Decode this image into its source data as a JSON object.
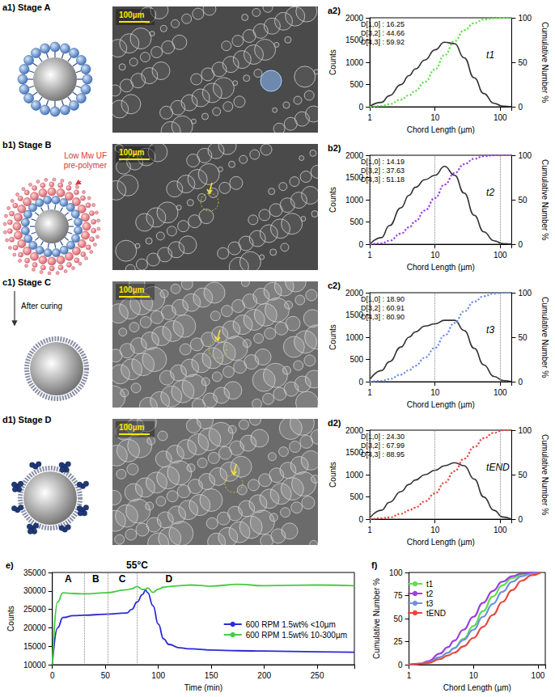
{
  "schematics": [
    {
      "label": "a1) Stage A"
    },
    {
      "label": "b1) Stage B",
      "annotation": "Low Mw UF pre-polymer"
    },
    {
      "label": "c1) Stage C",
      "annotation": "After curing"
    },
    {
      "label": "d1) Stage D"
    }
  ],
  "micrographs": [
    {
      "scale_bar": "100µm"
    },
    {
      "scale_bar": "100µm"
    },
    {
      "scale_bar": "100µm"
    },
    {
      "scale_bar": "100µm"
    }
  ],
  "chart_data": [
    {
      "type": "line",
      "title": "a2)",
      "log": "x",
      "grid": false,
      "xlabel": "Chord Length (µm)",
      "ylabel": "Counts",
      "y2label": "Cumulative Number %",
      "stats": [
        "D[1,0] : 16.25",
        "D[3,2] : 44.66",
        "D[4,3] : 59.92"
      ],
      "time_label": "t1",
      "x": [
        1,
        1.5,
        2,
        3,
        4,
        5,
        7,
        10,
        14,
        20,
        28,
        40,
        56,
        80,
        110,
        150
      ],
      "xlim": [
        1,
        150
      ],
      "xticks": [
        1,
        10,
        100
      ],
      "ylim": [
        0,
        2000
      ],
      "yticks": [
        0,
        500,
        1000,
        1500,
        2000
      ],
      "y2lim": [
        0,
        100
      ],
      "y2ticks": [
        0,
        50,
        100
      ],
      "series": [
        {
          "color": "#333333",
          "line_style": "solid",
          "values": [
            10,
            100,
            250,
            500,
            700,
            850,
            1050,
            1280,
            1450,
            1420,
            1100,
            650,
            300,
            80,
            15,
            0
          ]
        },
        {
          "color": "#5ee04a",
          "line_style": "dotted",
          "axis": "y2",
          "values": [
            0,
            1,
            3,
            8,
            13,
            18,
            28,
            42,
            58,
            74,
            86,
            94,
            98,
            99.5,
            100,
            100
          ]
        }
      ]
    },
    {
      "type": "line",
      "title": "b2)",
      "log": "x",
      "grid": true,
      "xlabel": "Chord Length (µm)",
      "ylabel": "Counts",
      "y2label": "Cumulative Number %",
      "stats": [
        "D[1,0] : 14.19",
        "D[3,2] : 37.63",
        "D[4,3] : 51.18"
      ],
      "time_label": "t2",
      "x": [
        1,
        1.5,
        2,
        3,
        4,
        5,
        7,
        10,
        14,
        20,
        28,
        40,
        56,
        80,
        110,
        150
      ],
      "xlim": [
        1,
        150
      ],
      "xticks": [
        1,
        10,
        100
      ],
      "ylim": [
        0,
        2000
      ],
      "yticks": [
        0,
        500,
        1000,
        1500,
        2000
      ],
      "y2lim": [
        0,
        100
      ],
      "y2ticks": [
        0,
        50,
        100
      ],
      "series": [
        {
          "color": "#333333",
          "line_style": "solid",
          "values": [
            0,
            150,
            420,
            820,
            1100,
            1280,
            1450,
            1550,
            1750,
            1550,
            1150,
            650,
            280,
            80,
            15,
            0
          ]
        },
        {
          "color": "#9a40e0",
          "line_style": "dotted",
          "axis": "y2",
          "values": [
            0,
            1,
            4,
            12,
            19,
            26,
            38,
            52,
            67,
            80,
            90,
            96,
            99,
            100,
            100,
            100
          ]
        }
      ]
    },
    {
      "type": "line",
      "title": "c2)",
      "log": "x",
      "grid": true,
      "xlabel": "Chord Length (µm)",
      "ylabel": "Counts",
      "y2label": "Cumulative Number %",
      "stats": [
        "D[1,0] : 18.90",
        "D[3,2] : 60.91",
        "D[4,3] : 80.90"
      ],
      "time_label": "t3",
      "x": [
        1,
        1.5,
        2,
        3,
        4,
        5,
        7,
        10,
        14,
        20,
        28,
        40,
        56,
        80,
        110,
        150
      ],
      "xlim": [
        1,
        150
      ],
      "xticks": [
        1,
        10,
        100
      ],
      "ylim": [
        0,
        2000
      ],
      "yticks": [
        0,
        500,
        1000,
        1500,
        2000
      ],
      "y2lim": [
        0,
        100
      ],
      "y2ticks": [
        0,
        50,
        100
      ],
      "series": [
        {
          "color": "#333333",
          "line_style": "solid",
          "values": [
            50,
            250,
            450,
            780,
            1000,
            1120,
            1250,
            1300,
            1380,
            1380,
            1150,
            750,
            380,
            120,
            30,
            0
          ]
        },
        {
          "color": "#6f8fe8",
          "line_style": "dotted",
          "axis": "y2",
          "values": [
            0,
            1,
            3,
            8,
            13,
            18,
            27,
            38,
            52,
            66,
            79,
            90,
            96,
            99,
            100,
            100
          ]
        }
      ]
    },
    {
      "type": "line",
      "title": "d2)",
      "log": "x",
      "grid": true,
      "xlabel": "Chord Length (µm)",
      "ylabel": "Counts",
      "y2label": "Cumulative Number %",
      "stats": [
        "D[1,0] : 24.30",
        "D[3,2] : 67.99",
        "D[4,3] : 88.95"
      ],
      "time_label": "tEND",
      "x": [
        1,
        1.5,
        2,
        3,
        4,
        5,
        7,
        10,
        14,
        20,
        28,
        40,
        56,
        80,
        110,
        150
      ],
      "xlim": [
        1,
        150
      ],
      "xticks": [
        1,
        10,
        100
      ],
      "ylim": [
        0,
        2000
      ],
      "yticks": [
        0,
        500,
        1000,
        1500,
        2000
      ],
      "y2lim": [
        0,
        100
      ],
      "y2ticks": [
        0,
        50,
        100
      ],
      "series": [
        {
          "color": "#333333",
          "line_style": "solid",
          "values": [
            30,
            200,
            380,
            620,
            780,
            880,
            1000,
            1100,
            1200,
            1270,
            1200,
            900,
            500,
            200,
            50,
            0
          ]
        },
        {
          "color": "#e8473d",
          "line_style": "dotted",
          "axis": "y2",
          "values": [
            0,
            1,
            2,
            6,
            10,
            13,
            20,
            29,
            41,
            54,
            68,
            81,
            91,
            97,
            100,
            100
          ]
        }
      ]
    },
    {
      "type": "line",
      "title": "e)",
      "legend": "right",
      "grid": false,
      "xlabel": "Time (min)",
      "ylabel": "Counts",
      "annotation": {
        "text": "55°C",
        "x": 80
      },
      "stage_bounds": [
        30,
        52,
        80
      ],
      "stages": [
        {
          "label": "A",
          "x": 15
        },
        {
          "label": "B",
          "x": 41
        },
        {
          "label": "C",
          "x": 66
        },
        {
          "label": "D",
          "x": 110
        }
      ],
      "x": [
        0,
        5,
        10,
        20,
        30,
        50,
        70,
        75,
        80,
        85,
        88,
        90,
        95,
        100,
        105,
        110,
        120,
        130,
        150,
        175,
        200,
        250,
        285
      ],
      "xlim": [
        0,
        285
      ],
      "xticks": [
        0,
        50,
        100,
        150,
        200,
        250
      ],
      "ylim": [
        10000,
        35000
      ],
      "yticks": [
        10000,
        15000,
        20000,
        25000,
        30000,
        35000
      ],
      "series": [
        {
          "name": "600 RPM 1.5wt% <10µm",
          "color": "#2a2ad6",
          "line_style": "solid",
          "values": [
            10000,
            20000,
            22800,
            23300,
            23400,
            23700,
            24000,
            25000,
            27000,
            29000,
            30200,
            29500,
            26000,
            21000,
            17000,
            15500,
            14600,
            14300,
            14000,
            13800,
            13700,
            13500,
            13400
          ]
        },
        {
          "name": "600 RPM 1.5wt% 10-300µm",
          "color": "#44cc44",
          "line_style": "solid",
          "values": [
            10000,
            27000,
            29500,
            29300,
            29200,
            29500,
            30300,
            30600,
            31200,
            30400,
            30500,
            30800,
            29600,
            30500,
            31000,
            31200,
            31400,
            31600,
            31300,
            31800,
            31400,
            31600,
            31400
          ]
        }
      ]
    },
    {
      "type": "line",
      "title": "f)",
      "log": "x",
      "legend": "upper left",
      "grid": false,
      "xlabel": "Chord Length (µm)",
      "ylabel": "Cumulative Number %",
      "x": [
        1,
        1.5,
        2,
        3,
        4,
        5,
        7,
        10,
        14,
        20,
        28,
        40,
        56,
        80,
        110
      ],
      "xlim": [
        1,
        130
      ],
      "xticks": [
        1,
        10,
        100
      ],
      "ylim": [
        0,
        100
      ],
      "yticks": [
        0,
        25,
        50,
        75,
        100
      ],
      "series": [
        {
          "name": "t1",
          "color": "#5ee04a",
          "line_style": "solid",
          "values": [
            0,
            1,
            3,
            8,
            13,
            18,
            28,
            42,
            58,
            74,
            86,
            94,
            98,
            99.5,
            100
          ]
        },
        {
          "name": "t2",
          "color": "#9a40e0",
          "line_style": "solid",
          "values": [
            0,
            1,
            4,
            12,
            19,
            26,
            38,
            52,
            67,
            80,
            90,
            96,
            99,
            100,
            100
          ]
        },
        {
          "name": "t3",
          "color": "#6f8fe8",
          "line_style": "solid",
          "values": [
            0,
            1,
            3,
            8,
            13,
            18,
            27,
            38,
            52,
            66,
            79,
            90,
            96,
            99,
            100
          ]
        },
        {
          "name": "tEND",
          "color": "#e8473d",
          "line_style": "solid",
          "values": [
            0,
            1,
            2,
            6,
            10,
            13,
            20,
            29,
            41,
            54,
            68,
            81,
            91,
            97,
            100
          ]
        }
      ]
    }
  ]
}
